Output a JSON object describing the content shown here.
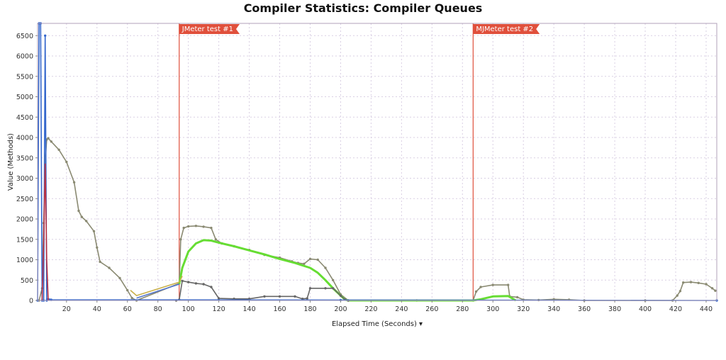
{
  "chart_data": {
    "type": "line",
    "title": "Compiler Statistics: Compiler Queues",
    "xlabel": "Elapsed Time (Seconds) ▾",
    "ylabel": "Value (Methods)",
    "xlim": [
      1,
      447
    ],
    "ylim": [
      0,
      6800
    ],
    "xticks": [
      20,
      40,
      60,
      80,
      100,
      120,
      140,
      160,
      180,
      200,
      220,
      240,
      260,
      280,
      300,
      320,
      340,
      360,
      380,
      400,
      420,
      440
    ],
    "yticks": [
      0,
      500,
      1000,
      1500,
      2000,
      2500,
      3000,
      3500,
      4000,
      4500,
      5000,
      5500,
      6000,
      6500
    ],
    "grid": true,
    "markers": [
      {
        "label": "JMeter test #1",
        "x": 94,
        "color": "#e0503c"
      },
      {
        "label": "MJMeter test #2",
        "x": 287,
        "color": "#e0503c"
      }
    ],
    "series": [
      {
        "color": "#8a8a72",
        "x": [
          2,
          4,
          5,
          6,
          7,
          8,
          10,
          15,
          20,
          25,
          28,
          30,
          33,
          38,
          40,
          42,
          48,
          55,
          60,
          63,
          66,
          94,
          95,
          97,
          100,
          105,
          110,
          115,
          118,
          122,
          130,
          140,
          150,
          160,
          168,
          172,
          176,
          180,
          185,
          190,
          195,
          200,
          205,
          250,
          287,
          289,
          292,
          300,
          310,
          311,
          316,
          320,
          330,
          340,
          350,
          360,
          400,
          418,
          421,
          423,
          425,
          430,
          435,
          440,
          444,
          446
        ],
        "values": [
          0,
          300,
          1900,
          3400,
          3950,
          3980,
          3900,
          3700,
          3400,
          2900,
          2200,
          2050,
          1950,
          1700,
          1300,
          950,
          800,
          550,
          250,
          60,
          0,
          420,
          1500,
          1780,
          1820,
          1830,
          1810,
          1780,
          1500,
          1400,
          1330,
          1240,
          1120,
          1050,
          960,
          920,
          900,
          1020,
          1000,
          800,
          500,
          150,
          0,
          0,
          0,
          220,
          330,
          380,
          380,
          100,
          80,
          20,
          10,
          30,
          20,
          0,
          0,
          0,
          120,
          230,
          440,
          450,
          430,
          400,
          300,
          240
        ]
      },
      {
        "color": "#66dd33",
        "x": [
          94,
          96,
          100,
          105,
          110,
          115,
          120,
          130,
          140,
          150,
          160,
          170,
          180,
          185,
          190,
          195,
          200,
          203,
          205,
          287,
          292,
          300,
          310,
          315
        ],
        "values": [
          400,
          800,
          1200,
          1400,
          1480,
          1470,
          1420,
          1330,
          1230,
          1130,
          1020,
          920,
          800,
          680,
          500,
          300,
          120,
          20,
          0,
          0,
          30,
          100,
          110,
          0
        ]
      },
      {
        "color": "#666666",
        "x": [
          92,
          94,
          96,
          100,
          105,
          110,
          115,
          120,
          130,
          140,
          150,
          160,
          170,
          175,
          178,
          180,
          190,
          195,
          200,
          203,
          205
        ],
        "values": [
          0,
          20,
          480,
          450,
          420,
          400,
          330,
          50,
          40,
          40,
          100,
          100,
          100,
          40,
          50,
          300,
          300,
          300,
          120,
          20,
          0
        ]
      },
      {
        "color": "#3366cc",
        "x": [
          1,
          2,
          3,
          4,
          5,
          6,
          7,
          8,
          9,
          10,
          200,
          447
        ],
        "values": [
          0,
          6800,
          6800,
          0,
          0,
          6500,
          0,
          30,
          20,
          15,
          10,
          0
        ]
      },
      {
        "color": "#bb3344",
        "x": [
          4,
          5,
          6,
          7,
          8
        ],
        "values": [
          0,
          1400,
          3350,
          1000,
          0
        ]
      },
      {
        "color": "#c9b04a",
        "x": [
          62,
          66,
          94,
          96
        ],
        "values": [
          250,
          120,
          450,
          600
        ]
      },
      {
        "color": "#5577cc",
        "x": [
          66,
          94
        ],
        "values": [
          60,
          400
        ]
      }
    ]
  }
}
